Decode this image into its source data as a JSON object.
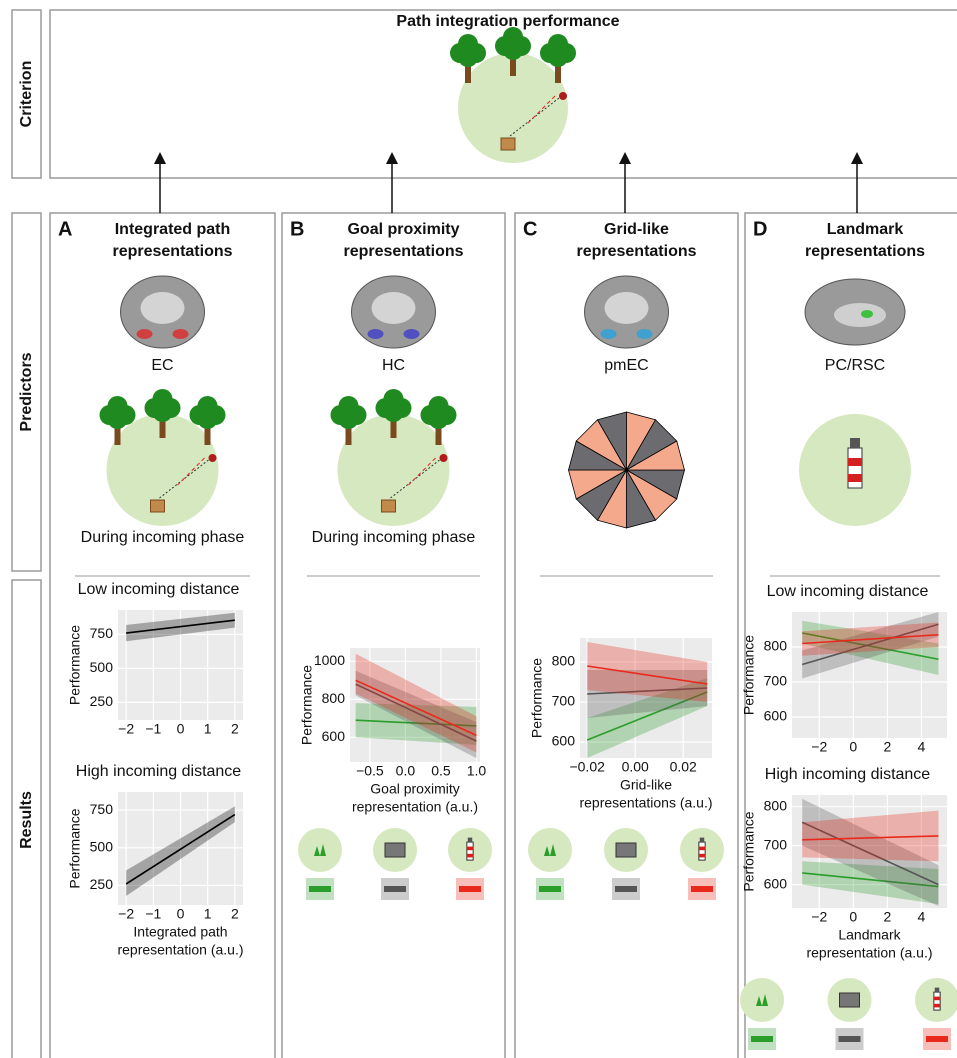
{
  "criterion": {
    "label": "Criterion",
    "title": "Path integration performance"
  },
  "row_labels": {
    "predictors": "Predictors",
    "results": "Results"
  },
  "panels": [
    {
      "letter": "A",
      "title": [
        "Integrated path",
        "representations"
      ],
      "region": "EC",
      "phase": "During incoming phase"
    },
    {
      "letter": "B",
      "title": [
        "Goal proximity",
        "representations"
      ],
      "region": "HC",
      "phase": "During incoming phase"
    },
    {
      "letter": "C",
      "title": [
        "Grid-like",
        "representations"
      ],
      "region": "pmEC"
    },
    {
      "letter": "D",
      "title": [
        "Landmark",
        "representations"
      ],
      "region": "PC/RSC"
    }
  ],
  "chart_data": [
    {
      "type": "line",
      "title": "Low incoming distance",
      "ylabel": "Performance",
      "x": [
        -2,
        2
      ],
      "xlim": [
        -2.3,
        2.3
      ],
      "xticks": [
        {
          "value": -2,
          "label": "−2"
        },
        {
          "value": -1,
          "label": "−1"
        },
        0,
        1,
        2
      ],
      "ylim": [
        120,
        930
      ],
      "yticks": [
        250,
        500,
        750
      ],
      "series": [
        {
          "color": "#000000",
          "values": [
            760,
            855
          ],
          "lower": [
            700,
            800
          ],
          "upper": [
            820,
            910
          ]
        }
      ]
    },
    {
      "type": "line",
      "title": "High incoming distance",
      "ylabel": "Performance",
      "xlabel": [
        "Integrated path",
        "representation (a.u.)"
      ],
      "x": [
        -2,
        2
      ],
      "xlim": [
        -2.3,
        2.3
      ],
      "xticks": [
        {
          "value": -2,
          "label": "−2"
        },
        {
          "value": -1,
          "label": "−1"
        },
        0,
        1,
        2
      ],
      "ylim": [
        120,
        870
      ],
      "yticks": [
        250,
        500,
        750
      ],
      "series": [
        {
          "color": "#000000",
          "values": [
            260,
            720
          ],
          "lower": [
            180,
            670
          ],
          "upper": [
            350,
            775
          ]
        }
      ]
    },
    {
      "type": "line",
      "ylabel": "Performance",
      "xlabel": [
        "Goal proximity",
        "representation (a.u.)"
      ],
      "x": [
        -0.7,
        1.0
      ],
      "xlim": [
        -0.78,
        1.05
      ],
      "xticks": [
        {
          "value": -0.5,
          "label": "−0.5"
        },
        {
          "value": 0,
          "label": "0.0"
        },
        {
          "value": 0.5,
          "label": "0.5"
        },
        {
          "value": 1,
          "label": "1.0"
        }
      ],
      "ylim": [
        470,
        1070
      ],
      "yticks": [
        600,
        800,
        1000
      ],
      "series": [
        {
          "color": "#2a9d2a",
          "values": [
            690,
            660
          ],
          "lower": [
            600,
            560
          ],
          "upper": [
            780,
            760
          ]
        },
        {
          "color": "#555555",
          "values": [
            880,
            580
          ],
          "lower": [
            820,
            490
          ],
          "upper": [
            950,
            680
          ]
        },
        {
          "color": "#e8291c",
          "values": [
            900,
            610
          ],
          "lower": [
            830,
            520
          ],
          "upper": [
            1040,
            710
          ]
        }
      ]
    },
    {
      "type": "line",
      "ylabel": "Performance",
      "xlabel": [
        "Grid-like",
        "representations (a.u.)"
      ],
      "x": [
        -0.02,
        0.03
      ],
      "xlim": [
        -0.023,
        0.032
      ],
      "xticks": [
        {
          "value": -0.02,
          "label": "−0.02"
        },
        {
          "value": 0,
          "label": "0.00"
        },
        {
          "value": 0.02,
          "label": "0.02"
        }
      ],
      "ylim": [
        560,
        860
      ],
      "yticks": [
        600,
        700,
        800
      ],
      "series": [
        {
          "color": "#2a9d2a",
          "values": [
            605,
            725
          ],
          "lower": [
            560,
            690
          ],
          "upper": [
            660,
            760
          ]
        },
        {
          "color": "#555555",
          "values": [
            720,
            735
          ],
          "lower": [
            660,
            690
          ],
          "upper": [
            780,
            780
          ]
        },
        {
          "color": "#e8291c",
          "values": [
            790,
            745
          ],
          "lower": [
            730,
            700
          ],
          "upper": [
            850,
            800
          ]
        }
      ]
    },
    {
      "type": "line",
      "title": "Low incoming distance",
      "ylabel": "Performance",
      "x": [
        -3,
        5
      ],
      "xlim": [
        -3.6,
        5.5
      ],
      "xticks": [
        {
          "value": -2,
          "label": "−2"
        },
        0,
        2,
        4
      ],
      "ylim": [
        540,
        900
      ],
      "yticks": [
        600,
        700,
        800
      ],
      "series": [
        {
          "color": "#2a9d2a",
          "values": [
            840,
            765
          ],
          "lower": [
            810,
            720
          ],
          "upper": [
            875,
            810
          ]
        },
        {
          "color": "#555555",
          "values": [
            750,
            865
          ],
          "lower": [
            710,
            830
          ],
          "upper": [
            790,
            900
          ]
        },
        {
          "color": "#e8291c",
          "values": [
            810,
            835
          ],
          "lower": [
            775,
            800
          ],
          "upper": [
            845,
            870
          ]
        }
      ]
    },
    {
      "type": "line",
      "title": "High incoming distance",
      "ylabel": "Performance",
      "xlabel": [
        "Landmark",
        "representation (a.u.)"
      ],
      "x": [
        -3,
        5
      ],
      "xlim": [
        -3.6,
        5.5
      ],
      "xticks": [
        {
          "value": -2,
          "label": "−2"
        },
        0,
        2,
        4
      ],
      "ylim": [
        540,
        830
      ],
      "yticks": [
        600,
        700,
        800
      ],
      "series": [
        {
          "color": "#2a9d2a",
          "values": [
            630,
            595
          ],
          "lower": [
            600,
            550
          ],
          "upper": [
            660,
            640
          ]
        },
        {
          "color": "#555555",
          "values": [
            760,
            600
          ],
          "lower": [
            700,
            545
          ],
          "upper": [
            820,
            650
          ]
        },
        {
          "color": "#e8291c",
          "values": [
            715,
            725
          ],
          "lower": [
            670,
            660
          ],
          "upper": [
            760,
            790
          ]
        }
      ]
    }
  ]
}
